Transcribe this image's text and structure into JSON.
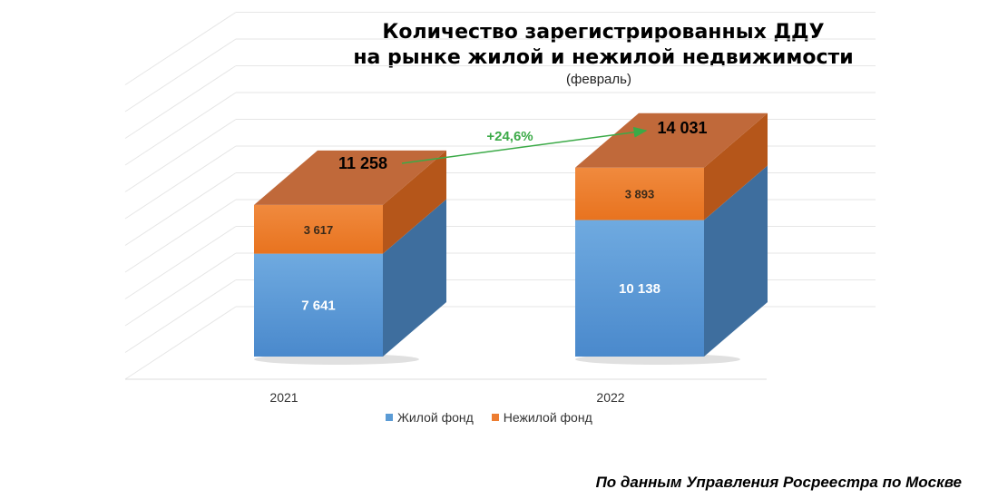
{
  "title": {
    "line1": "Количество зарегистрированных ДДУ",
    "line2": "на рынке жилой и нежилой недвижимости",
    "subtitle": "(февраль)"
  },
  "source": "По данным Управления Росреестра по Москве",
  "colors": {
    "residential": "#5B9BD5",
    "nonresidential": "#ED7D31",
    "growth": "#3BAA47"
  },
  "chart_data": {
    "type": "bar",
    "stacked": true,
    "categories": [
      "2021",
      "2022"
    ],
    "series": [
      {
        "name": "Жилой фонд",
        "values": [
          7641,
          10138
        ],
        "labels": [
          "7 641",
          "10 138"
        ]
      },
      {
        "name": "Нежилой фонд",
        "values": [
          3617,
          3893
        ],
        "labels": [
          "3 617",
          "3 893"
        ]
      }
    ],
    "totals": [
      11258,
      14031
    ],
    "total_labels": [
      "11 258",
      "14 031"
    ],
    "growth_label": "+24,6%",
    "legend_position": "bottom",
    "grid": true
  }
}
